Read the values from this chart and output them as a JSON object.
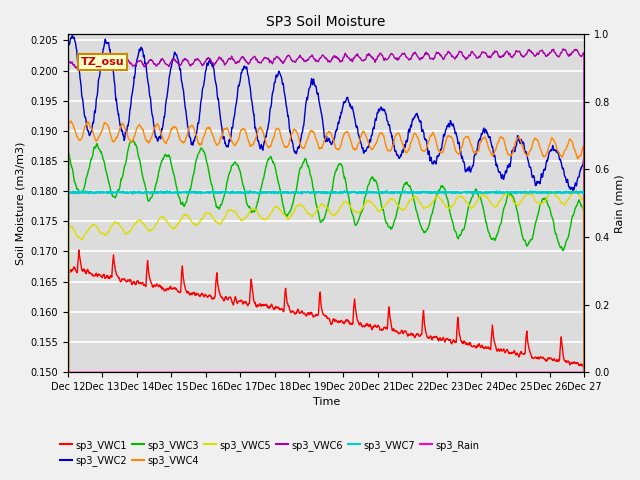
{
  "title": "SP3 Soil Moisture",
  "xlabel": "Time",
  "ylabel_left": "Soil Moisture (m3/m3)",
  "ylabel_right": "Rain (mm)",
  "ylim_left": [
    0.15,
    0.206
  ],
  "ylim_right": [
    0.0,
    1.0
  ],
  "n_points": 1500,
  "annotation": "TZ_osu",
  "xtick_labels": [
    "Dec 12",
    "Dec 13",
    "Dec 14",
    "Dec 15",
    "Dec 16",
    "Dec 17",
    "Dec 18",
    "Dec 19",
    "Dec 20",
    "Dec 21",
    "Dec 22",
    "Dec 23",
    "Dec 24",
    "Dec 25",
    "Dec 26",
    "Dec 27"
  ],
  "series_colors": {
    "sp3_VWC1": "#ff0000",
    "sp3_VWC2": "#0000cc",
    "sp3_VWC3": "#00bb00",
    "sp3_VWC4": "#ff8800",
    "sp3_VWC5": "#dddd00",
    "sp3_VWC6": "#aa00aa",
    "sp3_VWC7": "#00cccc",
    "sp3_Rain": "#ff00bb"
  },
  "bg_color": "#dcdcdc",
  "fig_bg": "#f0f0f0"
}
